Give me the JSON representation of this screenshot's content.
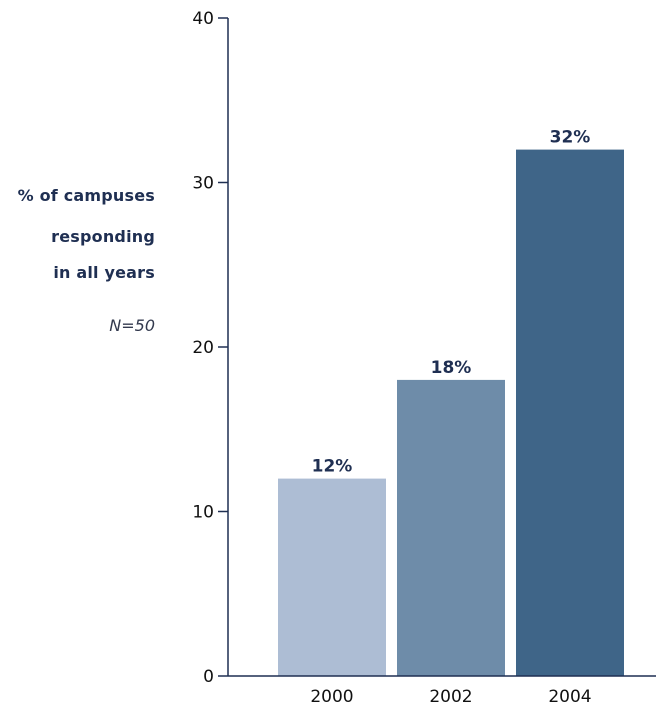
{
  "chart_data": {
    "type": "bar",
    "categories": [
      "2000",
      "2002",
      "2004"
    ],
    "values": [
      12,
      18,
      32
    ],
    "data_labels": [
      "12%",
      "18%",
      "32%"
    ],
    "bar_colors": [
      "#adbdd4",
      "#6e8ca9",
      "#3f6588"
    ],
    "ylabel_lines": [
      "% of campuses",
      "responding",
      "in all years"
    ],
    "note": "N=50",
    "ylim": [
      0,
      40
    ],
    "yticks": [
      0,
      10,
      20,
      30,
      40
    ],
    "grid": false,
    "axis_color": "#1f2f52"
  }
}
